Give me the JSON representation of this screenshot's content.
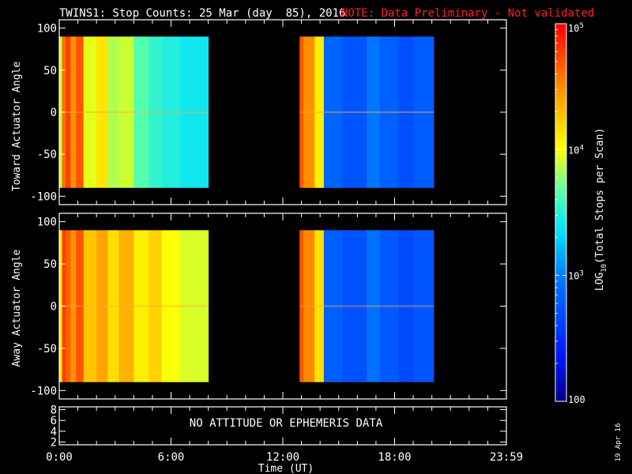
{
  "header": {
    "title": "TWINS1: Stop Counts: 25 Mar (day  85), 2016",
    "note": "NOTE: Data Preliminary - Not validated",
    "note_color": "#ff2020",
    "date_stamp": "19 Apr 16"
  },
  "colors": {
    "background": "#000000",
    "foreground": "#ffffff"
  },
  "chart_data": [
    {
      "type": "heatmap",
      "id": "toward",
      "title": "",
      "ylabel": "Toward Actuator Angle",
      "xlabel": "",
      "xlim": [
        0,
        24
      ],
      "ylim": [
        -110,
        110
      ],
      "y_ticks": [
        100,
        50,
        0,
        -50,
        -100
      ],
      "x_ticks": [
        0,
        6,
        12,
        18,
        24
      ],
      "data_y_range": [
        -90,
        90
      ],
      "data_intervals_hours": [
        [
          0.0,
          8.0
        ],
        [
          12.9,
          20.1
        ]
      ],
      "colorscale": "log10 total stops per scan",
      "segments": [
        {
          "t": [
            0.0,
            0.15
          ],
          "value": 8000
        },
        {
          "t": [
            0.15,
            0.35
          ],
          "value": 40000
        },
        {
          "t": [
            0.35,
            0.6
          ],
          "value": 60000
        },
        {
          "t": [
            0.6,
            0.9
          ],
          "value": 30000
        },
        {
          "t": [
            0.9,
            1.3
          ],
          "value": 50000
        },
        {
          "t": [
            1.3,
            2.0
          ],
          "value": 9000
        },
        {
          "t": [
            2.0,
            2.6
          ],
          "value": 13000
        },
        {
          "t": [
            2.6,
            3.2
          ],
          "value": 7000
        },
        {
          "t": [
            3.2,
            4.0
          ],
          "value": 8000
        },
        {
          "t": [
            4.0,
            4.8
          ],
          "value": 4500
        },
        {
          "t": [
            4.8,
            5.5
          ],
          "value": 3500
        },
        {
          "t": [
            5.5,
            6.5
          ],
          "value": 3000
        },
        {
          "t": [
            6.5,
            8.0
          ],
          "value": 2600
        },
        {
          "t": [
            12.9,
            13.1
          ],
          "value": 50000
        },
        {
          "t": [
            13.1,
            13.7
          ],
          "value": 30000
        },
        {
          "t": [
            13.7,
            14.2
          ],
          "value": 12000
        },
        {
          "t": [
            14.2,
            15.2
          ],
          "value": 700
        },
        {
          "t": [
            15.2,
            16.5
          ],
          "value": 550
        },
        {
          "t": [
            16.5,
            17.2
          ],
          "value": 900
        },
        {
          "t": [
            17.2,
            18.2
          ],
          "value": 650
        },
        {
          "t": [
            18.2,
            19.0
          ],
          "value": 500
        },
        {
          "t": [
            19.0,
            20.1
          ],
          "value": 620
        }
      ]
    },
    {
      "type": "heatmap",
      "id": "away",
      "title": "",
      "ylabel": "Away Actuator Angle",
      "xlabel": "",
      "xlim": [
        0,
        24
      ],
      "ylim": [
        -110,
        110
      ],
      "y_ticks": [
        100,
        50,
        0,
        -50,
        -100
      ],
      "x_ticks": [
        0,
        6,
        12,
        18,
        24
      ],
      "data_y_range": [
        -90,
        90
      ],
      "data_intervals_hours": [
        [
          0.0,
          8.0
        ],
        [
          12.9,
          20.1
        ]
      ],
      "colorscale": "log10 total stops per scan",
      "segments": [
        {
          "t": [
            0.0,
            0.15
          ],
          "value": 12000
        },
        {
          "t": [
            0.15,
            0.35
          ],
          "value": 60000
        },
        {
          "t": [
            0.35,
            0.6
          ],
          "value": 45000
        },
        {
          "t": [
            0.6,
            0.9
          ],
          "value": 30000
        },
        {
          "t": [
            0.9,
            1.3
          ],
          "value": 50000
        },
        {
          "t": [
            1.3,
            2.0
          ],
          "value": 18000
        },
        {
          "t": [
            2.0,
            2.6
          ],
          "value": 25000
        },
        {
          "t": [
            2.6,
            3.2
          ],
          "value": 14000
        },
        {
          "t": [
            3.2,
            4.0
          ],
          "value": 22000
        },
        {
          "t": [
            4.0,
            4.8
          ],
          "value": 12000
        },
        {
          "t": [
            4.8,
            5.5
          ],
          "value": 16000
        },
        {
          "t": [
            5.5,
            6.5
          ],
          "value": 10000
        },
        {
          "t": [
            6.5,
            8.0
          ],
          "value": 8500
        },
        {
          "t": [
            12.9,
            13.1
          ],
          "value": 50000
        },
        {
          "t": [
            13.1,
            13.7
          ],
          "value": 32000
        },
        {
          "t": [
            13.7,
            14.2
          ],
          "value": 14000
        },
        {
          "t": [
            14.2,
            15.2
          ],
          "value": 650
        },
        {
          "t": [
            15.2,
            16.5
          ],
          "value": 520
        },
        {
          "t": [
            16.5,
            17.2
          ],
          "value": 850
        },
        {
          "t": [
            17.2,
            18.2
          ],
          "value": 600
        },
        {
          "t": [
            18.2,
            19.0
          ],
          "value": 480
        },
        {
          "t": [
            19.0,
            20.1
          ],
          "value": 560
        }
      ]
    },
    {
      "type": "line",
      "id": "attitude",
      "title": "",
      "ylabel": "",
      "xlabel": "Time (UT)",
      "xlim": [
        0,
        24
      ],
      "ylim": [
        1.5,
        8.5
      ],
      "y_ticks": [
        8,
        6,
        4,
        2
      ],
      "x_tick_labels": [
        "0:00",
        "6:00",
        "12:00",
        "18:00",
        "23:59"
      ],
      "x_ticks": [
        0,
        6,
        12,
        18,
        24
      ],
      "message": "NO ATTITUDE OR EPHEMERIS DATA",
      "series": []
    }
  ],
  "colorbar": {
    "label_prefix": "LOG",
    "label_subscript": "10",
    "label_suffix": "(Total Stops per Scan)",
    "range": [
      100,
      100000
    ],
    "ticks": [
      {
        "value": 100000,
        "label_base": "10",
        "label_exp": "5"
      },
      {
        "value": 10000,
        "label_base": "10",
        "label_exp": "4"
      },
      {
        "value": 1000,
        "label_base": "10",
        "label_exp": "3"
      },
      {
        "value": 100,
        "label_base": "100",
        "label_exp": ""
      }
    ]
  }
}
